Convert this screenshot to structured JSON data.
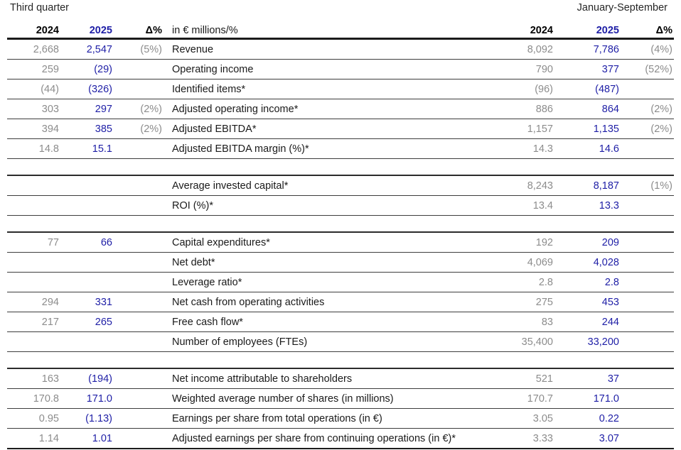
{
  "titles": {
    "left_group": "Third quarter",
    "right_group": "January-September"
  },
  "columns": {
    "q2024": "2024",
    "q2025": "2025",
    "qdelta": "Δ%",
    "unit_label": "in € millions/%",
    "y2024": "2024",
    "y2025": "2025",
    "ydelta": "Δ%"
  },
  "colors": {
    "accent_blue": "#1e1ea6",
    "muted_gray": "#8c8c8c",
    "text_dark": "#1a1a1a",
    "rule_dark": "#1a1a1a"
  },
  "table": {
    "rows": [
      {
        "label": "Revenue",
        "q2024": "2,668",
        "q2025": "2,547",
        "qdelta": "(5%)",
        "y2024": "8,092",
        "y2025": "7,786",
        "ydelta": "(4%)"
      },
      {
        "label": "Operating income",
        "q2024": "259",
        "q2025": "(29)",
        "qdelta": "",
        "y2024": "790",
        "y2025": "377",
        "ydelta": "(52%)"
      },
      {
        "label": "Identified items*",
        "q2024": "(44)",
        "q2025": "(326)",
        "qdelta": "",
        "y2024": "(96)",
        "y2025": "(487)",
        "ydelta": ""
      },
      {
        "label": "Adjusted operating income*",
        "q2024": "303",
        "q2025": "297",
        "qdelta": "(2%)",
        "y2024": "886",
        "y2025": "864",
        "ydelta": "(2%)"
      },
      {
        "label": "Adjusted EBITDA*",
        "q2024": "394",
        "q2025": "385",
        "qdelta": "(2%)",
        "y2024": "1,157",
        "y2025": "1,135",
        "ydelta": "(2%)"
      },
      {
        "label": "Adjusted EBITDA margin (%)*",
        "q2024": "14.8",
        "q2025": "15.1",
        "qdelta": "",
        "y2024": "14.3",
        "y2025": "14.6",
        "ydelta": ""
      },
      {
        "spacer": true
      },
      {
        "label": "Average invested capital*",
        "q2024": "",
        "q2025": "",
        "qdelta": "",
        "y2024": "8,243",
        "y2025": "8,187",
        "ydelta": "(1%)"
      },
      {
        "label": "ROI (%)*",
        "q2024": "",
        "q2025": "",
        "qdelta": "",
        "y2024": "13.4",
        "y2025": "13.3",
        "ydelta": ""
      },
      {
        "spacer": true
      },
      {
        "label": "Capital expenditures*",
        "q2024": "77",
        "q2025": "66",
        "qdelta": "",
        "y2024": "192",
        "y2025": "209",
        "ydelta": ""
      },
      {
        "label": "Net debt*",
        "q2024": "",
        "q2025": "",
        "qdelta": "",
        "y2024": "4,069",
        "y2025": "4,028",
        "ydelta": ""
      },
      {
        "label": "Leverage ratio*",
        "q2024": "",
        "q2025": "",
        "qdelta": "",
        "y2024": "2.8",
        "y2025": "2.8",
        "ydelta": ""
      },
      {
        "label": "Net cash from operating activities",
        "q2024": "294",
        "q2025": "331",
        "qdelta": "",
        "y2024": "275",
        "y2025": "453",
        "ydelta": ""
      },
      {
        "label": "Free cash flow*",
        "q2024": "217",
        "q2025": "265",
        "qdelta": "",
        "y2024": "83",
        "y2025": "244",
        "ydelta": ""
      },
      {
        "label": "Number of employees (FTEs)",
        "q2024": "",
        "q2025": "",
        "qdelta": "",
        "y2024": "35,400",
        "y2025": "33,200",
        "ydelta": ""
      },
      {
        "spacer": true
      },
      {
        "label": "Net income attributable to shareholders",
        "q2024": "163",
        "q2025": "(194)",
        "qdelta": "",
        "y2024": "521",
        "y2025": "37",
        "ydelta": ""
      },
      {
        "label": "Weighted average number of shares (in millions)",
        "q2024": "170.8",
        "q2025": "171.0",
        "qdelta": "",
        "y2024": "170.7",
        "y2025": "171.0",
        "ydelta": ""
      },
      {
        "label": "Earnings per share from total operations (in €)",
        "q2024": "0.95",
        "q2025": "(1.13)",
        "qdelta": "",
        "y2024": "3.05",
        "y2025": "0.22",
        "ydelta": ""
      },
      {
        "label": "Adjusted earnings per share from continuing operations (in €)*",
        "q2024": "1.14",
        "q2025": "1.01",
        "qdelta": "",
        "y2024": "3.33",
        "y2025": "3.07",
        "ydelta": ""
      }
    ]
  }
}
